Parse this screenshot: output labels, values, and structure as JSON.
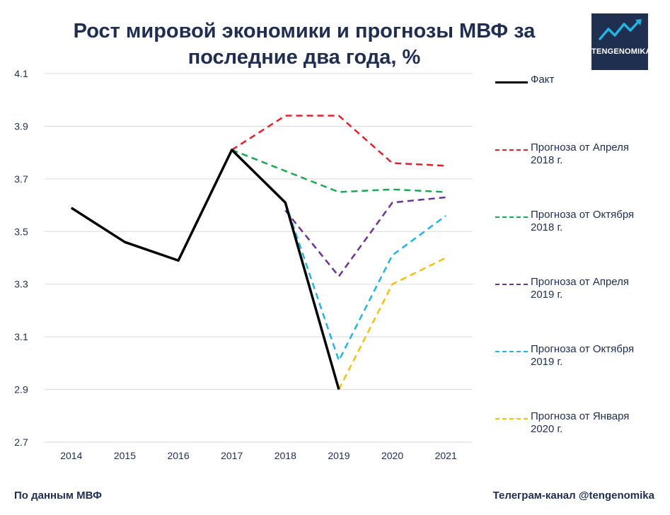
{
  "chart_data": {
    "type": "line",
    "title": "Рост мировой экономики и прогнозы МВФ за последние два года, %",
    "xlabel": "",
    "ylabel": "",
    "categories": [
      "2014",
      "2015",
      "2016",
      "2017",
      "2018",
      "2019",
      "2020",
      "2021"
    ],
    "yticks": [
      "4.1",
      "3.9",
      "3.7",
      "3.5",
      "3.3",
      "3.1",
      "2.9",
      "2.7"
    ],
    "ylim": [
      2.7,
      4.1
    ],
    "grid": true,
    "legend_position": "right",
    "series": [
      {
        "name": "Факт",
        "color": "#000000",
        "dashed": false,
        "values": [
          3.59,
          3.46,
          3.39,
          3.81,
          3.61,
          2.9,
          null,
          null
        ]
      },
      {
        "name": "Прогноза от Апреля 2018 г.",
        "color": "#e0202a",
        "dashed": true,
        "values": [
          null,
          null,
          null,
          3.81,
          3.94,
          3.94,
          3.76,
          3.75
        ]
      },
      {
        "name": "Прогноза от Октября 2018 г.",
        "color": "#1aa850",
        "dashed": true,
        "values": [
          null,
          null,
          null,
          3.81,
          3.73,
          3.65,
          3.66,
          3.65
        ]
      },
      {
        "name": "Прогноза от Апреля 2019 г.",
        "color": "#6a3493",
        "dashed": true,
        "values": [
          null,
          null,
          null,
          null,
          3.58,
          3.33,
          3.61,
          3.63
        ]
      },
      {
        "name": "Прогноза от Октября 2019 г.",
        "color": "#25b3e0",
        "dashed": true,
        "values": [
          null,
          null,
          null,
          null,
          3.61,
          3.01,
          3.41,
          3.56
        ]
      },
      {
        "name": "Прогноза от Января 2020 г.",
        "color": "#f2c00f",
        "dashed": true,
        "values": [
          null,
          null,
          null,
          null,
          null,
          2.9,
          3.3,
          3.4
        ]
      }
    ]
  },
  "title_lines": [
    "Рост мировой экономики и прогнозы МВФ за",
    "последние два года, %"
  ],
  "logo": {
    "text": "TENGENOMIKA",
    "icon": "rising-chart-icon",
    "bg_color": "#1e2f4f",
    "accent": "#25b3e0"
  },
  "legend": [
    {
      "line1": "Факт",
      "line2": ""
    },
    {
      "line1": "Прогноза от Апреля",
      "line2": "2018 г."
    },
    {
      "line1": "Прогноза от Октября",
      "line2": "2018 г."
    },
    {
      "line1": "Прогноза от Апреля",
      "line2": "2019 г."
    },
    {
      "line1": "Прогноза от Октября",
      "line2": "2019 г."
    },
    {
      "line1": "Прогноза от Января",
      "line2": "2020 г."
    }
  ],
  "footer": {
    "source": "По данным МВФ",
    "channel": "Телеграм-канал @tengenomika"
  }
}
